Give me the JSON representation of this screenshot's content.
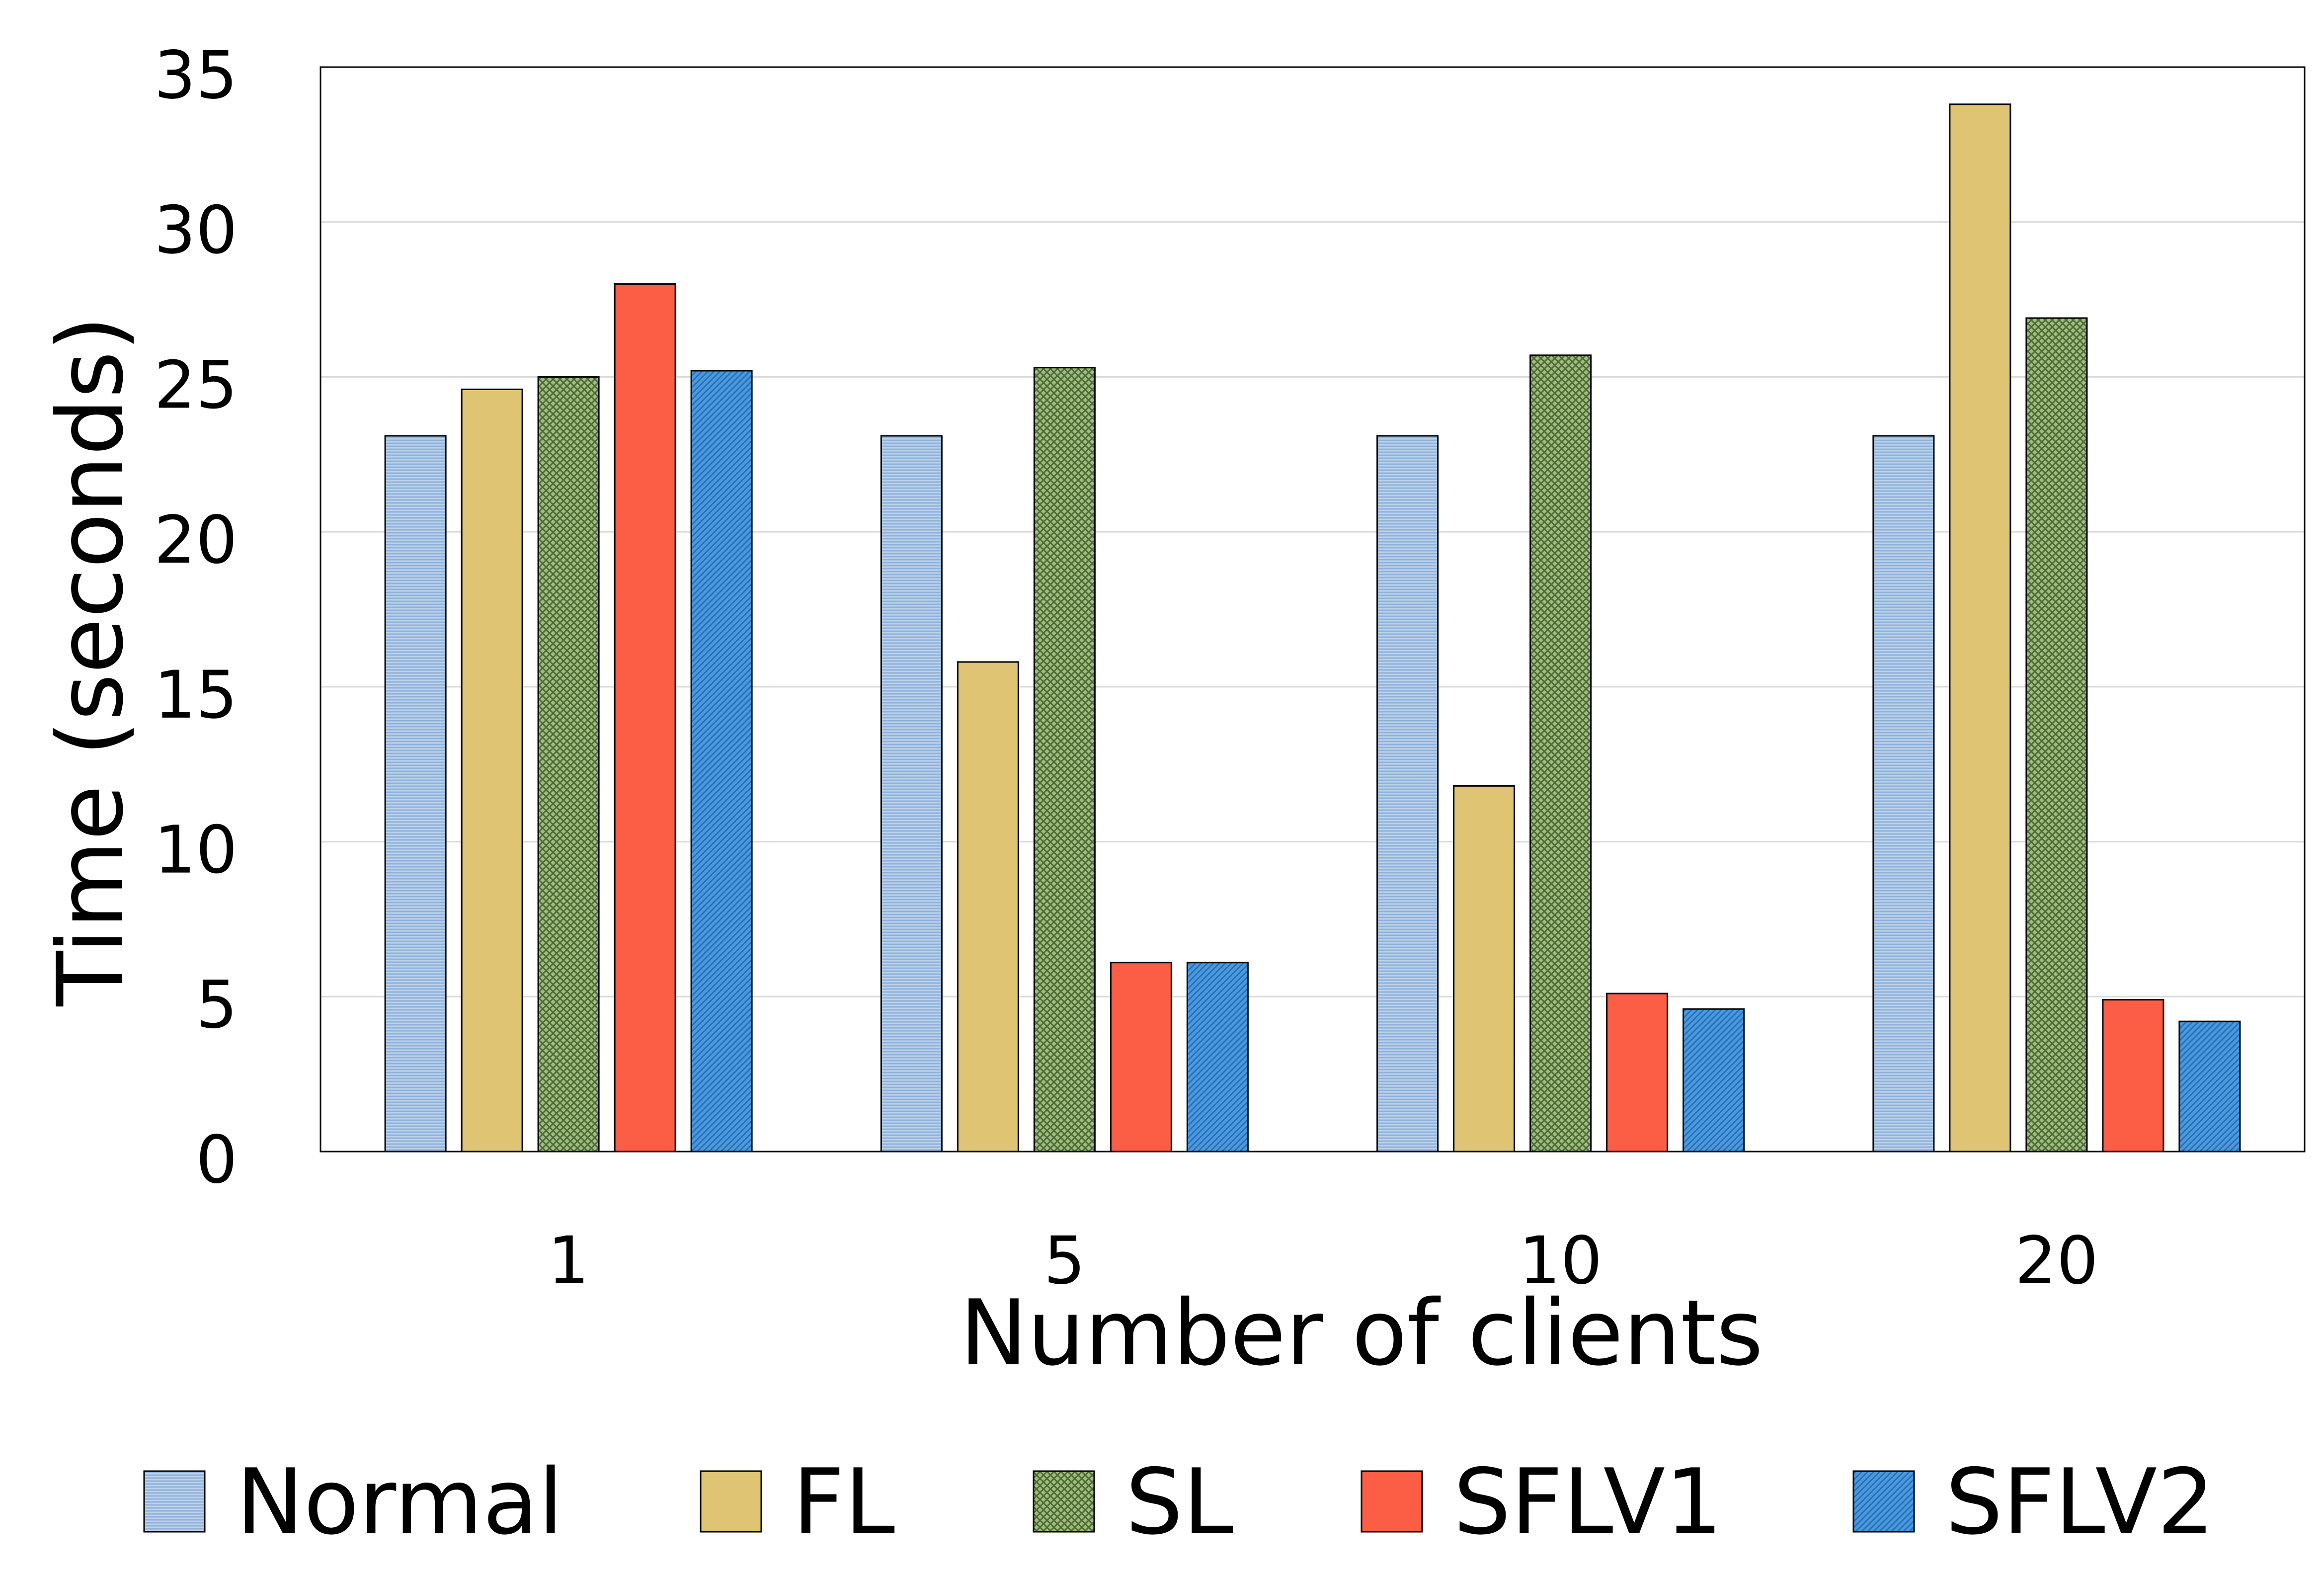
{
  "chart_data": {
    "type": "bar",
    "title": "",
    "xlabel": "Number of clients",
    "ylabel": "Time (seconds)",
    "categories": [
      "1",
      "5",
      "10",
      "20"
    ],
    "ylim": [
      0,
      35
    ],
    "yticks": [
      0,
      5,
      10,
      15,
      20,
      25,
      30,
      35
    ],
    "grid": true,
    "legend_position": "bottom",
    "series": [
      {
        "name": "Normal",
        "values": [
          23.1,
          23.1,
          23.1,
          23.1
        ],
        "color": "#bcd3ec",
        "pattern": "horizontal-lines"
      },
      {
        "name": "FL",
        "values": [
          24.6,
          15.8,
          11.8,
          33.8
        ],
        "color": "#dfc573",
        "pattern": "solid"
      },
      {
        "name": "SL",
        "values": [
          25.0,
          25.3,
          25.7,
          26.9
        ],
        "color": "#8fae6b",
        "pattern": "crosshatch"
      },
      {
        "name": "SFLV1",
        "values": [
          28.0,
          6.1,
          5.1,
          4.9
        ],
        "color": "#fb5d45",
        "pattern": "solid"
      },
      {
        "name": "SFLV2",
        "values": [
          25.2,
          6.1,
          4.6,
          4.2
        ],
        "color": "#3d8fdc",
        "pattern": "diagonal-lines"
      }
    ]
  }
}
